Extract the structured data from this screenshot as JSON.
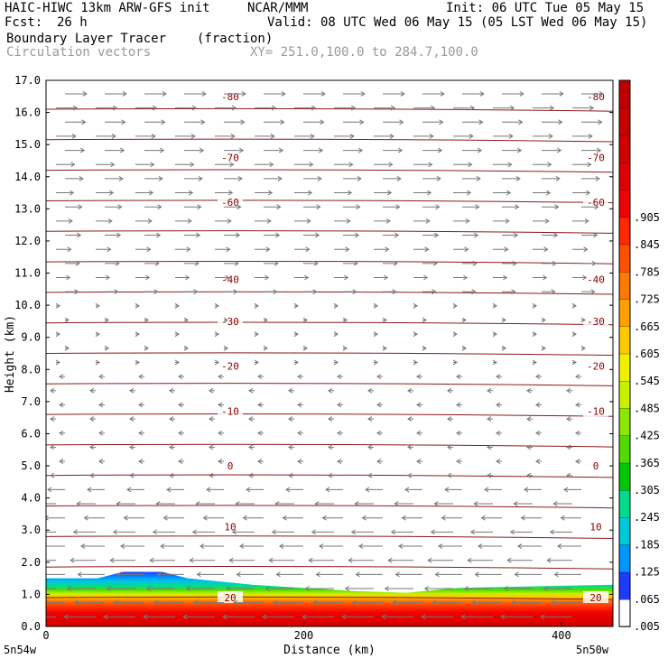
{
  "header": {
    "model": "HAIC-HIWC 13km ARW-GFS init",
    "org": "NCAR/MMM",
    "init": "Init: 06 UTC Tue 05 May 15",
    "fcst_label": "Fcst:",
    "fcst_value": "26 h",
    "valid": "Valid: 08 UTC Wed 06 May 15 (05 LST Wed 06 May 15)",
    "field": "Boundary Layer Tracer",
    "field_units": "(fraction)",
    "vectors": "Circulation vectors",
    "xy": "XY= 251.0,100.0 to 284.7,100.0"
  },
  "chart_data": {
    "type": "heatmap",
    "title": "Boundary Layer Tracer",
    "units": "(fraction)",
    "ylabel": "Height (km)",
    "xlabel": "Distance (km)",
    "ylim": [
      0,
      17
    ],
    "xlim": [
      0,
      440
    ],
    "y_ticks": [
      "0.0",
      "1.0",
      "2.0",
      "3.0",
      "4.0",
      "5.0",
      "6.0",
      "7.0",
      "8.0",
      "9.0",
      "10.0",
      "11.0",
      "12.0",
      "13.0",
      "14.0",
      "15.0",
      "16.0",
      "17.0"
    ],
    "x_ticks": [
      "0",
      "200",
      "400"
    ],
    "x_endpoints": [
      "5n54w",
      "5n50w"
    ],
    "colorbar": {
      "labels": [
        ".005",
        ".065",
        ".125",
        ".185",
        ".245",
        ".305",
        ".365",
        ".425",
        ".485",
        ".545",
        ".605",
        ".665",
        ".725",
        ".785",
        ".845",
        ".905"
      ],
      "colors": [
        "#ffffff",
        "#1e3cff",
        "#0096ff",
        "#00c8dc",
        "#00dc8c",
        "#00c800",
        "#50dc00",
        "#8ce600",
        "#c8f000",
        "#f0f000",
        "#ffc800",
        "#ffa000",
        "#ff7800",
        "#ff5000",
        "#ff2800",
        "#f00000",
        "#e00000",
        "#d20000",
        "#c80000",
        "#c00000"
      ]
    },
    "temperature_contours": [
      {
        "value": "-80",
        "height_km": 16.5
      },
      {
        "value": "-70",
        "height_km": 14.6
      },
      {
        "value": "-60",
        "height_km": 13.2
      },
      {
        "value": "-40",
        "height_km": 10.8
      },
      {
        "value": "-30",
        "height_km": 9.5
      },
      {
        "value": "-20",
        "height_km": 8.1
      },
      {
        "value": "-10",
        "height_km": 6.7
      },
      {
        "value": "0",
        "height_km": 5.0
      },
      {
        "value": "10",
        "height_km": 3.1
      },
      {
        "value": "20",
        "height_km": 0.9
      }
    ],
    "tracer_top_km": [
      {
        "x": 0,
        "top": 1.5
      },
      {
        "x": 40,
        "top": 1.5
      },
      {
        "x": 60,
        "top": 1.7
      },
      {
        "x": 90,
        "top": 1.7
      },
      {
        "x": 110,
        "top": 1.5
      },
      {
        "x": 160,
        "top": 1.3
      },
      {
        "x": 240,
        "top": 1.1
      },
      {
        "x": 280,
        "top": 1.05
      },
      {
        "x": 320,
        "top": 1.2
      },
      {
        "x": 440,
        "top": 1.3
      }
    ]
  }
}
